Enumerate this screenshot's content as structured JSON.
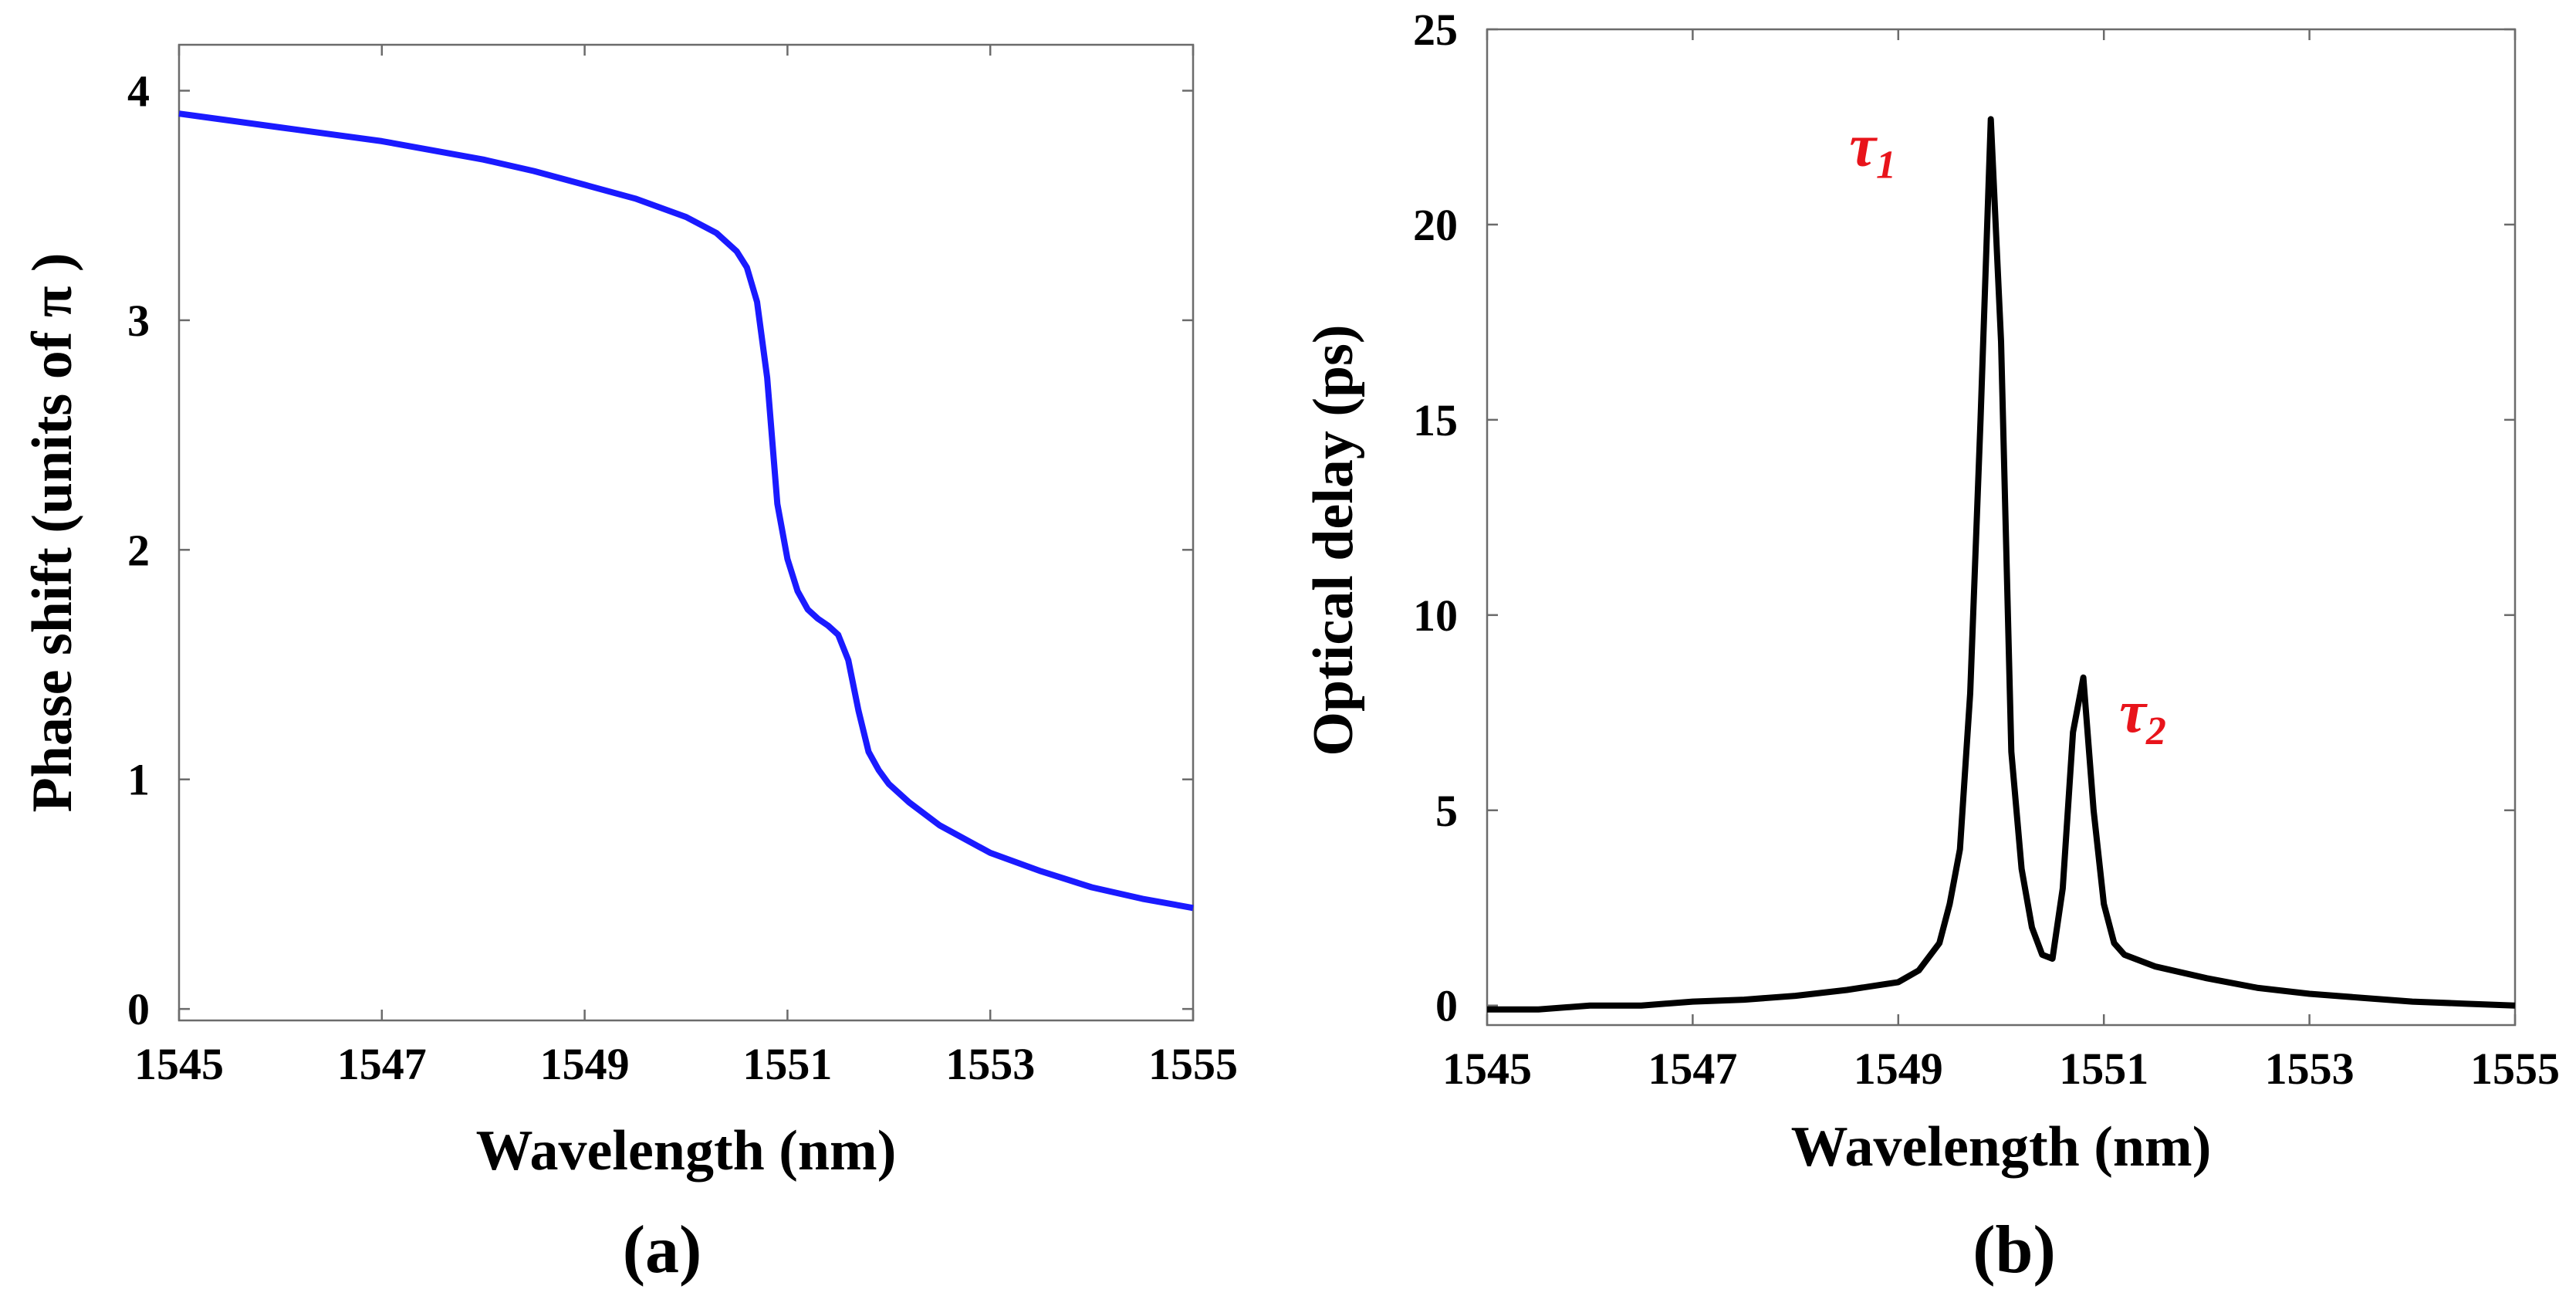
{
  "chart_data": [
    {
      "id": "a",
      "type": "line",
      "panel_label": "(a)",
      "xlabel": "Wavelength (nm)",
      "ylabel": "Phase shift (units of  π )",
      "xlim": [
        1545,
        1555
      ],
      "ylim": [
        -0.05,
        4.2
      ],
      "xticks": [
        1545,
        1547,
        1549,
        1551,
        1553,
        1555
      ],
      "yticks": [
        0,
        1,
        2,
        3,
        4
      ],
      "grid": false,
      "line_color": "#1a1aff",
      "series": [
        {
          "name": "phase shift",
          "x": [
            1545,
            1546,
            1547,
            1548,
            1548.5,
            1549,
            1549.5,
            1550,
            1550.3,
            1550.5,
            1550.6,
            1550.7,
            1550.8,
            1550.9,
            1551.0,
            1551.1,
            1551.2,
            1551.3,
            1551.4,
            1551.5,
            1551.6,
            1551.7,
            1551.8,
            1551.9,
            1552.0,
            1552.2,
            1552.5,
            1553,
            1553.5,
            1554,
            1554.5,
            1555
          ],
          "y": [
            3.9,
            3.84,
            3.78,
            3.7,
            3.65,
            3.59,
            3.53,
            3.45,
            3.38,
            3.3,
            3.23,
            3.08,
            2.75,
            2.2,
            1.96,
            1.82,
            1.74,
            1.7,
            1.67,
            1.63,
            1.52,
            1.3,
            1.12,
            1.04,
            0.98,
            0.9,
            0.8,
            0.68,
            0.6,
            0.53,
            0.48,
            0.44
          ]
        }
      ]
    },
    {
      "id": "b",
      "type": "line",
      "panel_label": "(b)",
      "xlabel": "Wavelength (nm)",
      "ylabel": "Optical delay (ps)",
      "xlim": [
        1545,
        1555
      ],
      "ylim": [
        -0.5,
        25
      ],
      "xticks": [
        1545,
        1547,
        1549,
        1551,
        1553,
        1555
      ],
      "yticks": [
        0,
        5,
        10,
        15,
        20,
        25
      ],
      "grid": false,
      "line_color": "#000000",
      "series": [
        {
          "name": "optical delay",
          "x": [
            1545,
            1545.5,
            1546,
            1546.5,
            1547,
            1547.5,
            1548,
            1548.5,
            1549,
            1549.2,
            1549.4,
            1549.5,
            1549.6,
            1549.7,
            1549.8,
            1549.9,
            1550.0,
            1550.1,
            1550.2,
            1550.3,
            1550.4,
            1550.5,
            1550.6,
            1550.7,
            1550.8,
            1550.9,
            1551.0,
            1551.1,
            1551.2,
            1551.5,
            1552,
            1552.5,
            1553,
            1553.5,
            1554,
            1554.5,
            1555
          ],
          "y": [
            -0.1,
            -0.1,
            0,
            0,
            0.1,
            0.15,
            0.25,
            0.4,
            0.6,
            0.9,
            1.6,
            2.6,
            4,
            8,
            15,
            22.7,
            17,
            6.5,
            3.5,
            2,
            1.3,
            1.2,
            3,
            7,
            8.4,
            5,
            2.6,
            1.6,
            1.3,
            1.0,
            0.7,
            0.45,
            0.3,
            0.2,
            0.1,
            0.05,
            0
          ]
        }
      ],
      "annotations": [
        {
          "symbol": "τ",
          "subscript": "1",
          "x": 1549.8,
          "y": 22.3
        },
        {
          "symbol": "τ",
          "subscript": "2",
          "x": 1551.0,
          "y": 8.3
        }
      ]
    }
  ]
}
